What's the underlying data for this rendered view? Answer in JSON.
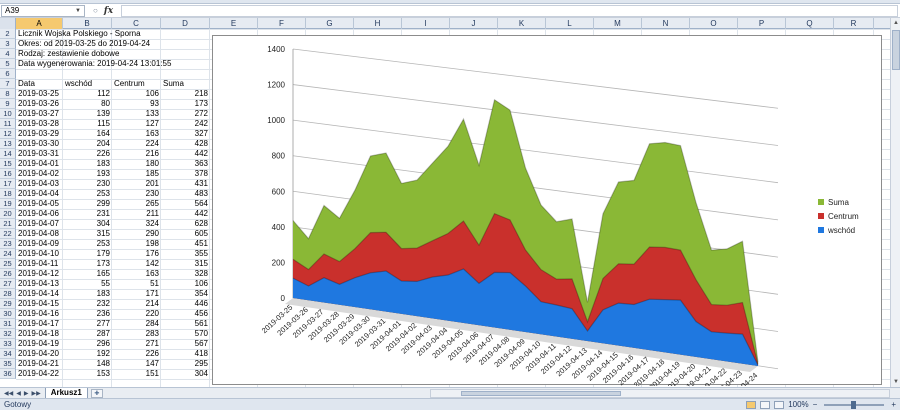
{
  "name_box": "A39",
  "fx": "fx",
  "columns": [
    "A",
    "B",
    "C",
    "D",
    "E",
    "F",
    "G",
    "H",
    "I",
    "J",
    "K",
    "L",
    "M",
    "N",
    "O",
    "P",
    "Q",
    "R"
  ],
  "active_column": "A",
  "rows": [
    "2",
    "3",
    "4",
    "5",
    "6",
    "7",
    "8",
    "9",
    "10",
    "11",
    "12",
    "13",
    "14",
    "15",
    "16",
    "17",
    "18",
    "19",
    "20",
    "21",
    "22",
    "23",
    "24",
    "25",
    "26",
    "27",
    "28",
    "29",
    "30",
    "31",
    "32",
    "33",
    "34",
    "35",
    "36"
  ],
  "info": [
    "Licznik Wojska Polskiego - Sporna",
    "Okres: od 2019-03-25 do 2019-04-24",
    "Rodzaj: zestawienie dobowe",
    "Data wygenerowania: 2019-04-24 13:01:55"
  ],
  "table_headers": [
    "Data",
    "wschód",
    "Centrum",
    "Suma"
  ],
  "table_rows": [
    [
      "2019-03-25",
      "112",
      "106",
      "218"
    ],
    [
      "2019-03-26",
      "80",
      "93",
      "173"
    ],
    [
      "2019-03-27",
      "139",
      "133",
      "272"
    ],
    [
      "2019-03-28",
      "115",
      "127",
      "242"
    ],
    [
      "2019-03-29",
      "164",
      "163",
      "327"
    ],
    [
      "2019-03-30",
      "204",
      "224",
      "428"
    ],
    [
      "2019-03-31",
      "226",
      "216",
      "442"
    ],
    [
      "2019-04-01",
      "183",
      "180",
      "363"
    ],
    [
      "2019-04-02",
      "193",
      "185",
      "378"
    ],
    [
      "2019-04-03",
      "230",
      "201",
      "431"
    ],
    [
      "2019-04-04",
      "253",
      "230",
      "483"
    ],
    [
      "2019-04-05",
      "299",
      "265",
      "564"
    ],
    [
      "2019-04-06",
      "231",
      "211",
      "442"
    ],
    [
      "2019-04-07",
      "304",
      "324",
      "628"
    ],
    [
      "2019-04-08",
      "315",
      "290",
      "605"
    ],
    [
      "2019-04-09",
      "253",
      "198",
      "451"
    ],
    [
      "2019-04-10",
      "179",
      "176",
      "355"
    ],
    [
      "2019-04-11",
      "173",
      "142",
      "315"
    ],
    [
      "2019-04-12",
      "165",
      "163",
      "328"
    ],
    [
      "2019-04-13",
      "55",
      "51",
      "106"
    ],
    [
      "2019-04-14",
      "183",
      "171",
      "354"
    ],
    [
      "2019-04-15",
      "232",
      "214",
      "446"
    ],
    [
      "2019-04-16",
      "236",
      "220",
      "456"
    ],
    [
      "2019-04-17",
      "277",
      "284",
      "561"
    ],
    [
      "2019-04-18",
      "287",
      "283",
      "570"
    ],
    [
      "2019-04-19",
      "296",
      "271",
      "567"
    ],
    [
      "2019-04-20",
      "192",
      "226",
      "418"
    ],
    [
      "2019-04-21",
      "148",
      "147",
      "295"
    ],
    [
      "2019-04-22",
      "153",
      "151",
      "304"
    ]
  ],
  "chart_data": {
    "type": "area",
    "stacked": true,
    "perspective_3d": true,
    "title": "",
    "x": [
      "2019-03-25",
      "2019-03-26",
      "2019-03-27",
      "2019-03-28",
      "2019-03-29",
      "2019-03-30",
      "2019-03-31",
      "2019-04-01",
      "2019-04-02",
      "2019-04-03",
      "2019-04-04",
      "2019-04-05",
      "2019-04-06",
      "2019-04-07",
      "2019-04-08",
      "2019-04-09",
      "2019-04-10",
      "2019-04-11",
      "2019-04-12",
      "2019-04-13",
      "2019-04-14",
      "2019-04-15",
      "2019-04-16",
      "2019-04-17",
      "2019-04-18",
      "2019-04-19",
      "2019-04-20",
      "2019-04-21",
      "2019-04-22",
      "2019-04-23",
      "2019-04-24"
    ],
    "x_tick_labels": [
      "2019-03-25",
      "2019-03-26",
      "2019-03-27",
      "2019-03-28",
      "2019-03-29",
      "2019-03-30",
      "2019-03-31",
      "2019-04-01",
      "2019-04-02",
      "2019-04-03",
      "2019-04-04",
      "2019-04-05",
      "2019-04-06",
      "2019-04-07",
      "2019-04-08",
      "2019-04-09",
      "2019-04-10",
      "2019-04-11",
      "2019-04-12",
      "2019-04-13",
      "2019-04-14",
      "2019-04-15",
      "2019-04-16",
      "2019-04-17",
      "2019-04-18",
      "2019-04-19",
      "2019-04-20",
      "2019-04-21",
      "2019-04-22",
      "2019-04-23",
      "2019-04-24"
    ],
    "series": [
      {
        "name": "wschód",
        "color": "#1f78e0",
        "values": [
          112,
          80,
          139,
          115,
          164,
          204,
          226,
          183,
          193,
          230,
          253,
          299,
          231,
          304,
          315,
          253,
          179,
          173,
          165,
          55,
          183,
          232,
          236,
          277,
          287,
          296,
          192,
          148,
          153,
          160,
          5
        ]
      },
      {
        "name": "Centrum",
        "color": "#c9302c",
        "values": [
          106,
          93,
          133,
          127,
          163,
          224,
          216,
          180,
          185,
          201,
          230,
          265,
          211,
          324,
          290,
          198,
          176,
          142,
          163,
          51,
          171,
          214,
          220,
          284,
          283,
          271,
          226,
          147,
          151,
          170,
          5
        ]
      },
      {
        "name": "Suma",
        "color": "#8ab836",
        "values": [
          218,
          173,
          272,
          242,
          327,
          428,
          442,
          363,
          378,
          431,
          483,
          564,
          442,
          628,
          605,
          451,
          355,
          315,
          328,
          106,
          354,
          446,
          456,
          561,
          570,
          567,
          418,
          295,
          304,
          330,
          10
        ]
      }
    ],
    "yticks": [
      "0",
      "200",
      "400",
      "600",
      "800",
      "1000",
      "1200",
      "1400"
    ],
    "ylim": [
      0,
      1400
    ],
    "grid": true,
    "legend_position": "right",
    "legend_order": [
      "Suma",
      "Centrum",
      "wschód"
    ]
  },
  "sheet_tab": "Arkusz1",
  "status_left": "Gotowy",
  "zoom": "100%"
}
